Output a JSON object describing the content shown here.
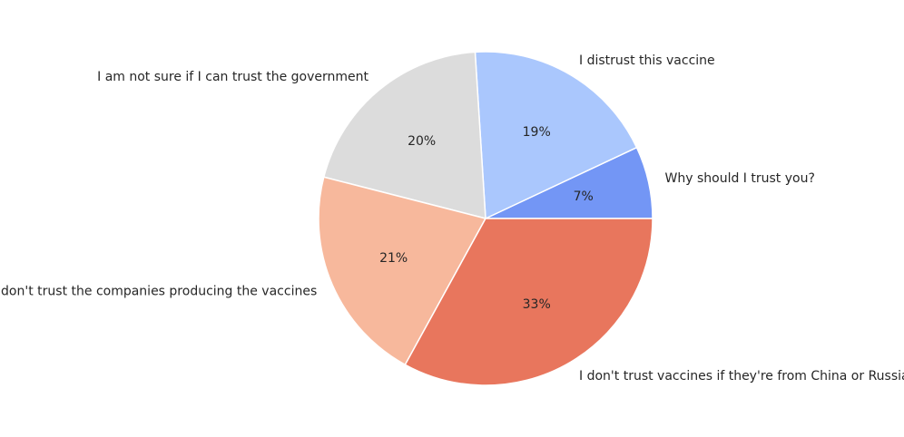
{
  "chart_data": {
    "type": "pie",
    "start_angle": 0,
    "direction": "counterclockwise",
    "slices": [
      {
        "label": "Why should I trust you?",
        "value": 7,
        "pct_label": "7%",
        "color": "#7396f5"
      },
      {
        "label": "I distrust this vaccine",
        "value": 19,
        "pct_label": "19%",
        "color": "#aac7fd"
      },
      {
        "label": "I am not sure if I can trust the government",
        "value": 20,
        "pct_label": "20%",
        "color": "#dcdcdc"
      },
      {
        "label": "I don't trust the companies producing the vaccines",
        "value": 21,
        "pct_label": "21%",
        "color": "#f7b89c"
      },
      {
        "label": "I don't trust vaccines if they're from China or Russia",
        "value": 33,
        "pct_label": "33%",
        "color": "#e8765d"
      }
    ]
  }
}
